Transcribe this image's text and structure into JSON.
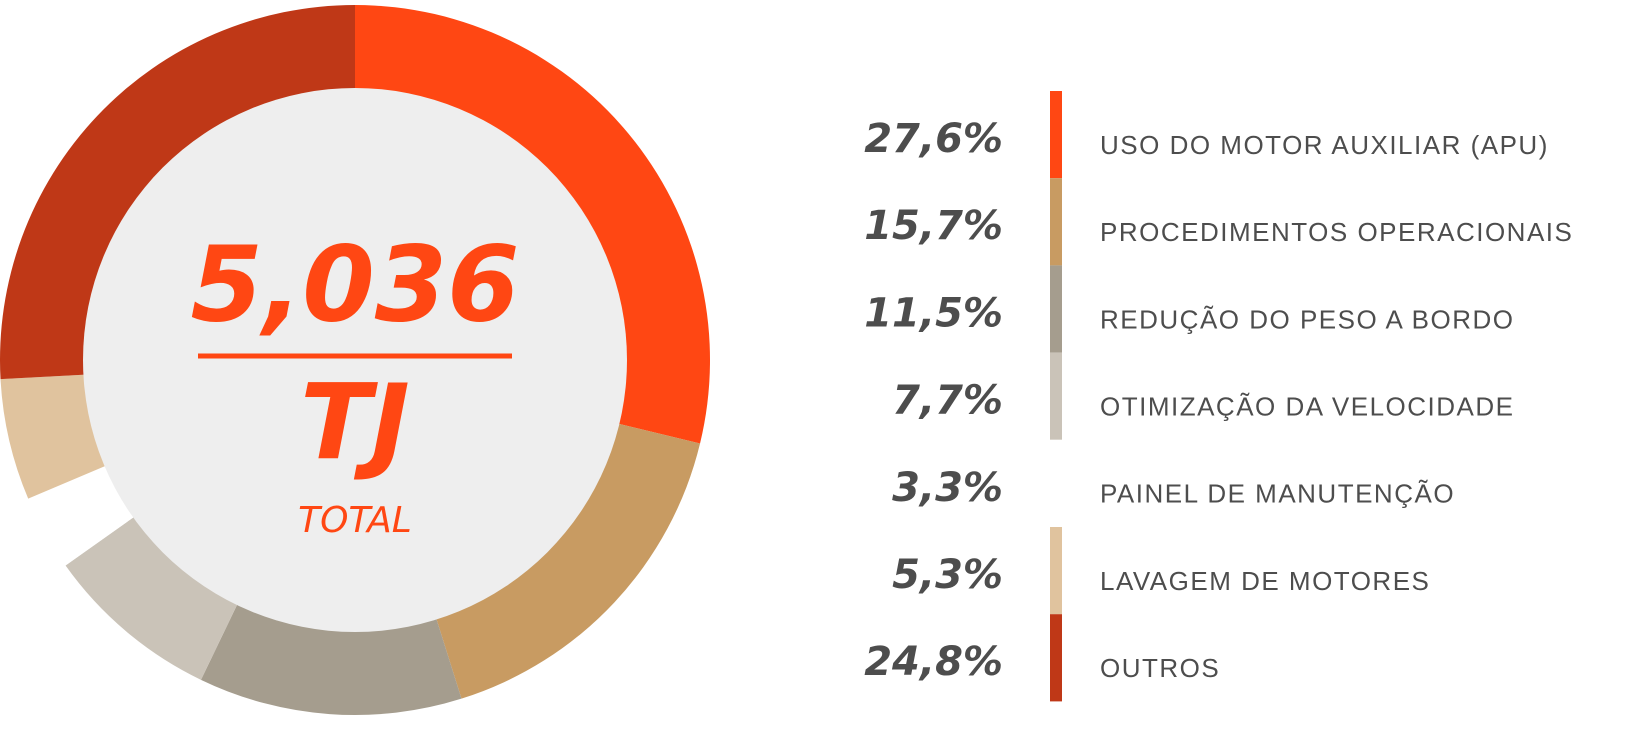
{
  "chart_data": {
    "type": "pie",
    "categories": [
      "USO DO MOTOR AUXILIAR (APU)",
      "PROCEDIMENTOS OPERACIONAIS",
      "REDUÇÃO DO PESO A BORDO",
      "OTIMIZAÇÃO DA VELOCIDADE",
      "PAINEL DE MANUTENÇÃO",
      "LAVAGEM DE MOTORES",
      "OUTROS"
    ],
    "values": [
      27.6,
      15.7,
      11.5,
      7.7,
      3.3,
      5.3,
      24.8
    ],
    "value_labels": [
      "27,6%",
      "15,7%",
      "11,5%",
      "7,7%",
      "3,3%",
      "5,3%",
      "24,8%"
    ],
    "colors": [
      "#ff4713",
      "#c89b62",
      "#a59d8e",
      "#cac3b8",
      "#ffffff",
      "#e0c39e",
      "#bf3817"
    ],
    "total": {
      "value": 5.036,
      "label": "5,036"
    },
    "unit": "TJ",
    "total_caption": "TOTAL"
  }
}
